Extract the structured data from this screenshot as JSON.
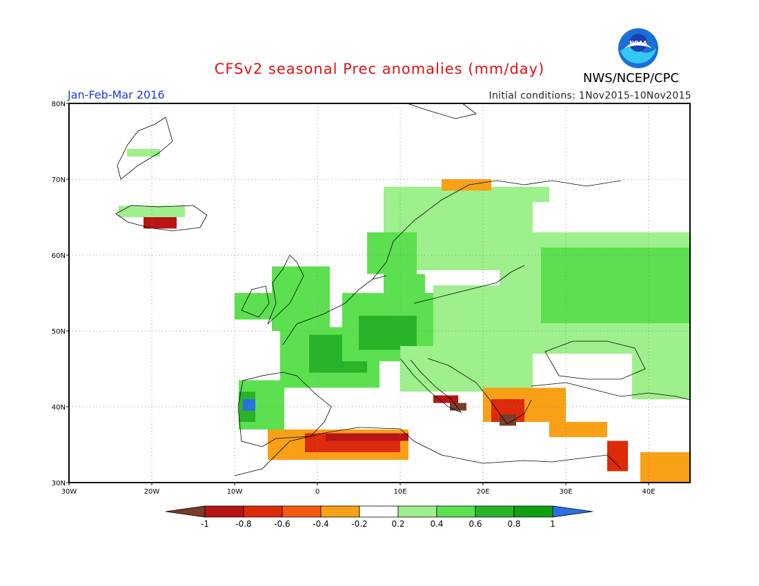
{
  "title": "CFSv2 seasonal Prec anomalies (mm/day)",
  "agency": "NWS/NCEP/CPC",
  "season": "Jan-Feb-Mar 2016",
  "initial_conditions": "Initial conditions: 1Nov2015-10Nov2015",
  "logo_text": "NOAA",
  "map": {
    "projection": "lat-lon",
    "lon_range": [
      -30,
      45
    ],
    "lat_range": [
      30,
      80
    ],
    "lon_ticks": [
      {
        "value": -30,
        "label": "30W"
      },
      {
        "value": -20,
        "label": "20W"
      },
      {
        "value": -10,
        "label": "10W"
      },
      {
        "value": 0,
        "label": "0"
      },
      {
        "value": 10,
        "label": "10E"
      },
      {
        "value": 20,
        "label": "20E"
      },
      {
        "value": 30,
        "label": "30E"
      },
      {
        "value": 40,
        "label": "40E"
      }
    ],
    "lat_ticks": [
      {
        "value": 30,
        "label": "30N"
      },
      {
        "value": 40,
        "label": "40N"
      },
      {
        "value": 50,
        "label": "50N"
      },
      {
        "value": 60,
        "label": "60N"
      },
      {
        "value": 70,
        "label": "70N"
      },
      {
        "value": 80,
        "label": "80N"
      }
    ],
    "grid": "dotted"
  },
  "colorbar": {
    "levels": [
      "-1",
      "-0.8",
      "-0.6",
      "-0.4",
      "-0.2",
      "0.2",
      "0.4",
      "0.6",
      "0.8",
      "1"
    ],
    "colors": [
      "#7a3c28",
      "#b81414",
      "#dc2a0a",
      "#f55a10",
      "#f8a016",
      "#ffffff",
      "#9ef08c",
      "#5ce050",
      "#28b428",
      "#10a010",
      "#2a70e0"
    ]
  },
  "regions": [
    {
      "name": "iceland-north",
      "color": "#9ef08c",
      "lon": [
        -24,
        -16
      ],
      "lat": [
        65,
        66.5
      ]
    },
    {
      "name": "iceland-west-dry",
      "color": "#b81414",
      "lon": [
        -21,
        -17
      ],
      "lat": [
        63.5,
        65
      ]
    },
    {
      "name": "greenland-east",
      "color": "#9ef08c",
      "lon": [
        -23,
        -19
      ],
      "lat": [
        73,
        74
      ]
    },
    {
      "name": "ireland",
      "color": "#5ce050",
      "lon": [
        -10,
        -5.5
      ],
      "lat": [
        51.5,
        55
      ]
    },
    {
      "name": "britain",
      "color": "#5ce050",
      "lon": [
        -5.5,
        1.5
      ],
      "lat": [
        50,
        58.5
      ]
    },
    {
      "name": "iberia-west",
      "color": "#5ce050",
      "lon": [
        -9.5,
        -4
      ],
      "lat": [
        37,
        43.5
      ]
    },
    {
      "name": "portugal-wet",
      "color": "#28b428",
      "lon": [
        -9.5,
        -7.5
      ],
      "lat": [
        38,
        42
      ]
    },
    {
      "name": "portugal-max",
      "color": "#2a70e0",
      "lon": [
        -9,
        -7.5
      ],
      "lat": [
        39.5,
        41
      ]
    },
    {
      "name": "france",
      "color": "#5ce050",
      "lon": [
        -4.5,
        7.5
      ],
      "lat": [
        42.5,
        50.5
      ]
    },
    {
      "name": "france-wet",
      "color": "#28b428",
      "lon": [
        -1,
        6
      ],
      "lat": [
        44.5,
        49.5
      ]
    },
    {
      "name": "central-europe",
      "color": "#5ce050",
      "lon": [
        3,
        16
      ],
      "lat": [
        46,
        55
      ]
    },
    {
      "name": "central-europe-wet",
      "color": "#28b428",
      "lon": [
        5,
        12
      ],
      "lat": [
        47.5,
        52
      ]
    },
    {
      "name": "alps-balkans",
      "color": "#9ef08c",
      "lon": [
        10,
        26
      ],
      "lat": [
        42,
        48
      ]
    },
    {
      "name": "poland-baltics",
      "color": "#9ef08c",
      "lon": [
        14,
        28
      ],
      "lat": [
        48,
        56
      ]
    },
    {
      "name": "scandinavia",
      "color": "#9ef08c",
      "lon": [
        8,
        26
      ],
      "lat": [
        58,
        69
      ]
    },
    {
      "name": "norway-wet",
      "color": "#5ce050",
      "lon": [
        6,
        12
      ],
      "lat": [
        57.5,
        63
      ]
    },
    {
      "name": "denmark",
      "color": "#5ce050",
      "lon": [
        8,
        13
      ],
      "lat": [
        54,
        57.5
      ]
    },
    {
      "name": "russia-west",
      "color": "#9ef08c",
      "lon": [
        22,
        45
      ],
      "lat": [
        47,
        63
      ]
    },
    {
      "name": "russia-wet",
      "color": "#5ce050",
      "lon": [
        27,
        45
      ],
      "lat": [
        51,
        61
      ]
    },
    {
      "name": "kola",
      "color": "#9ef08c",
      "lon": [
        21,
        28
      ],
      "lat": [
        67,
        69
      ]
    },
    {
      "name": "ukraine-south",
      "color": "#9ef08c",
      "lon": [
        38,
        45
      ],
      "lat": [
        41,
        47
      ]
    },
    {
      "name": "greece-turkey-dry",
      "color": "#f8a016",
      "lon": [
        20,
        30
      ],
      "lat": [
        38,
        42.5
      ]
    },
    {
      "name": "greece-dry",
      "color": "#dc2a0a",
      "lon": [
        21,
        25
      ],
      "lat": [
        38,
        41
      ]
    },
    {
      "name": "greece-core",
      "color": "#7a3c28",
      "lon": [
        22,
        24
      ],
      "lat": [
        37.5,
        39
      ]
    },
    {
      "name": "italy-south-dry",
      "color": "#b81414",
      "lon": [
        14,
        17
      ],
      "lat": [
        40.5,
        41.5
      ]
    },
    {
      "name": "italy-heel",
      "color": "#7a3c28",
      "lon": [
        16,
        18
      ],
      "lat": [
        39.5,
        40.5
      ]
    },
    {
      "name": "turkey-south",
      "color": "#f8a016",
      "lon": [
        28,
        35
      ],
      "lat": [
        36,
        38
      ]
    },
    {
      "name": "north-africa-dry",
      "color": "#f8a016",
      "lon": [
        -6,
        11
      ],
      "lat": [
        33,
        37
      ]
    },
    {
      "name": "algeria-dry",
      "color": "#dc2a0a",
      "lon": [
        -1.5,
        10
      ],
      "lat": [
        34,
        36.5
      ]
    },
    {
      "name": "algeria-core",
      "color": "#b81414",
      "lon": [
        1,
        11
      ],
      "lat": [
        35.5,
        36.5
      ]
    },
    {
      "name": "levant-dry",
      "color": "#dc2a0a",
      "lon": [
        35,
        37.5
      ],
      "lat": [
        31.5,
        35.5
      ]
    },
    {
      "name": "iraq-dry",
      "color": "#f8a016",
      "lon": [
        39,
        45
      ],
      "lat": [
        30,
        34
      ]
    },
    {
      "name": "norway-north-dry",
      "color": "#f8a016",
      "lon": [
        15,
        21
      ],
      "lat": [
        68.5,
        70
      ]
    }
  ]
}
